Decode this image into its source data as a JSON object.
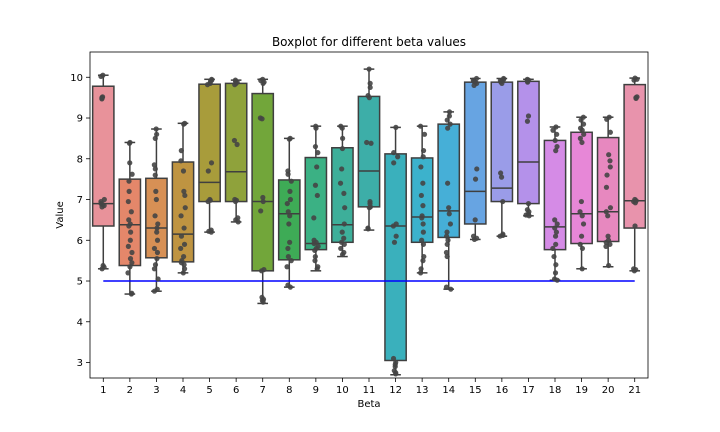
{
  "chart_data": {
    "type": "box",
    "title": "Boxplot for different beta values",
    "xlabel": "Beta",
    "ylabel": "Value",
    "categories": [
      "1",
      "2",
      "3",
      "4",
      "5",
      "6",
      "7",
      "8",
      "9",
      "10",
      "11",
      "12",
      "13",
      "14",
      "15",
      "16",
      "17",
      "18",
      "19",
      "20",
      "21"
    ],
    "ylim": [
      2.62,
      10.62
    ],
    "yticks": [
      3,
      4,
      5,
      6,
      7,
      8,
      9,
      10
    ],
    "grid": false,
    "reference_line": {
      "value": 5.0,
      "color": "#0000ff"
    },
    "colors": [
      "#e8929a",
      "#e4876a",
      "#d79055",
      "#bf9441",
      "#a89c3b",
      "#8fa23b",
      "#72a63a",
      "#3eab56",
      "#3bb184",
      "#3daf9a",
      "#3daea8",
      "#3ab0bc",
      "#3cb2cc",
      "#46afd7",
      "#67a4e2",
      "#9a9ce8",
      "#b491ea",
      "#d58be6",
      "#e787d7",
      "#e788bf",
      "#e893ac"
    ],
    "boxes": [
      {
        "min": 5.3,
        "q1": 6.35,
        "median": 6.9,
        "q3": 9.78,
        "max": 10.05,
        "points": [
          10.05,
          10.02,
          9.52,
          9.5,
          9.49,
          9.47,
          7.0,
          6.95,
          6.9,
          6.88,
          6.85,
          6.82,
          5.38,
          5.34,
          5.3
        ]
      },
      {
        "min": 4.68,
        "q1": 5.38,
        "median": 6.38,
        "q3": 7.5,
        "max": 8.4,
        "points": [
          8.4,
          8.38,
          7.9,
          7.62,
          7.45,
          7.2,
          6.95,
          6.7,
          6.5,
          6.4,
          6.35,
          6.2,
          6.0,
          5.85,
          5.7,
          5.55,
          5.45,
          5.35,
          5.2,
          4.7,
          4.68
        ]
      },
      {
        "min": 4.75,
        "q1": 5.57,
        "median": 6.3,
        "q3": 7.52,
        "max": 8.73,
        "points": [
          8.73,
          8.6,
          8.5,
          7.85,
          7.75,
          7.6,
          7.2,
          7.0,
          6.6,
          6.4,
          6.3,
          6.2,
          6.0,
          5.8,
          5.7,
          5.55,
          5.4,
          5.3,
          5.05,
          4.8,
          4.75
        ]
      },
      {
        "min": 5.2,
        "q1": 5.47,
        "median": 6.15,
        "q3": 7.92,
        "max": 8.87,
        "points": [
          8.87,
          8.85,
          8.2,
          7.95,
          7.7,
          7.2,
          7.1,
          6.8,
          6.6,
          6.3,
          6.1,
          5.9,
          5.8,
          5.6,
          5.5,
          5.45,
          5.4,
          5.3,
          5.2
        ]
      },
      {
        "min": 6.2,
        "q1": 6.95,
        "median": 7.42,
        "q3": 9.83,
        "max": 9.95,
        "points": [
          9.95,
          9.93,
          9.9,
          9.85,
          9.82,
          7.9,
          7.7,
          7.0,
          6.98,
          6.95,
          6.25,
          6.22,
          6.2
        ]
      },
      {
        "min": 6.45,
        "q1": 6.95,
        "median": 7.68,
        "q3": 9.85,
        "max": 9.93,
        "points": [
          9.93,
          9.9,
          9.88,
          9.85,
          9.82,
          8.45,
          8.35,
          7.0,
          6.98,
          6.95,
          6.55,
          6.5,
          6.45
        ]
      },
      {
        "min": 4.45,
        "q1": 5.25,
        "median": 6.95,
        "q3": 9.6,
        "max": 9.95,
        "points": [
          9.95,
          9.92,
          9.88,
          9.85,
          9.0,
          8.98,
          7.05,
          6.95,
          6.72,
          5.28,
          5.25,
          4.6,
          4.55,
          4.52,
          4.48
        ]
      },
      {
        "min": 4.85,
        "q1": 5.52,
        "median": 6.65,
        "q3": 7.48,
        "max": 8.5,
        "points": [
          8.5,
          8.48,
          7.7,
          7.62,
          7.45,
          7.2,
          7.0,
          6.9,
          6.7,
          6.6,
          6.4,
          5.95,
          5.8,
          5.6,
          5.5,
          5.35,
          4.9,
          4.85
        ]
      },
      {
        "min": 5.25,
        "q1": 5.77,
        "median": 5.92,
        "q3": 8.03,
        "max": 8.8,
        "points": [
          8.8,
          8.75,
          8.3,
          8.15,
          7.8,
          7.35,
          7.1,
          6.55,
          6.0,
          5.95,
          5.92,
          5.85,
          5.8,
          5.75,
          5.6,
          5.5,
          5.35,
          5.3
        ]
      },
      {
        "min": 5.6,
        "q1": 5.95,
        "median": 6.38,
        "q3": 8.27,
        "max": 8.8,
        "points": [
          8.8,
          8.75,
          8.5,
          8.25,
          7.75,
          7.4,
          7.15,
          6.8,
          6.4,
          6.2,
          6.05,
          5.95,
          5.9,
          5.8,
          5.7,
          5.65
        ]
      },
      {
        "min": 6.25,
        "q1": 6.82,
        "median": 7.7,
        "q3": 9.53,
        "max": 10.2,
        "points": [
          10.2,
          9.85,
          9.75,
          9.55,
          9.5,
          8.4,
          8.38,
          6.95,
          6.9,
          6.82,
          6.8,
          6.3,
          6.28
        ]
      },
      {
        "min": 2.7,
        "q1": 3.05,
        "median": 6.35,
        "q3": 8.12,
        "max": 8.77,
        "points": [
          8.77,
          8.15,
          8.05,
          7.9,
          6.4,
          6.35,
          6.1,
          5.95,
          3.1,
          3.0,
          2.95,
          2.9,
          2.8,
          2.75,
          2.72
        ]
      },
      {
        "min": 5.2,
        "q1": 5.95,
        "median": 6.57,
        "q3": 8.02,
        "max": 8.8,
        "points": [
          8.8,
          8.6,
          8.2,
          8.05,
          7.8,
          7.4,
          7.1,
          6.85,
          6.6,
          6.55,
          6.4,
          6.2,
          6.0,
          5.9,
          5.6,
          5.5,
          5.3,
          5.2
        ]
      },
      {
        "min": 4.8,
        "q1": 6.07,
        "median": 6.72,
        "q3": 8.85,
        "max": 9.15,
        "points": [
          9.15,
          9.05,
          8.95,
          8.85,
          8.75,
          7.4,
          6.8,
          6.65,
          6.4,
          6.2,
          6.1,
          6.0,
          5.9,
          5.7,
          5.6,
          4.85,
          4.8
        ]
      },
      {
        "min": 6.02,
        "q1": 6.4,
        "median": 7.2,
        "q3": 9.88,
        "max": 9.97,
        "points": [
          9.97,
          9.93,
          9.9,
          9.88,
          9.85,
          9.8,
          7.75,
          7.5,
          6.5,
          6.1,
          6.05,
          6.02
        ]
      },
      {
        "min": 6.1,
        "q1": 6.95,
        "median": 7.28,
        "q3": 9.88,
        "max": 9.97,
        "points": [
          9.97,
          9.95,
          9.92,
          9.9,
          9.88,
          9.85,
          7.65,
          7.55,
          6.95,
          6.15,
          6.12,
          6.1
        ]
      },
      {
        "min": 6.6,
        "q1": 6.9,
        "median": 7.92,
        "q3": 9.9,
        "max": 9.95,
        "points": [
          9.95,
          9.93,
          9.92,
          9.9,
          9.88,
          9.05,
          8.92,
          6.9,
          6.75,
          6.7,
          6.65,
          6.62,
          6.6
        ]
      },
      {
        "min": 5.02,
        "q1": 5.77,
        "median": 6.33,
        "q3": 8.45,
        "max": 8.78,
        "points": [
          8.78,
          8.7,
          8.6,
          8.45,
          8.3,
          8.2,
          6.5,
          6.4,
          6.3,
          6.2,
          6.1,
          5.9,
          5.8,
          5.6,
          5.4,
          5.2,
          5.05,
          5.02
        ]
      },
      {
        "min": 5.3,
        "q1": 5.92,
        "median": 6.65,
        "q3": 8.65,
        "max": 9.02,
        "points": [
          9.02,
          8.95,
          8.85,
          8.75,
          8.7,
          8.6,
          8.5,
          8.4,
          6.95,
          6.7,
          6.6,
          6.4,
          6.1,
          5.9,
          5.8,
          5.3
        ]
      },
      {
        "min": 5.35,
        "q1": 5.97,
        "median": 6.7,
        "q3": 8.52,
        "max": 9.02,
        "points": [
          9.02,
          8.97,
          8.65,
          8.1,
          7.95,
          7.8,
          7.6,
          7.3,
          6.8,
          6.7,
          6.6,
          6.1,
          6.0,
          5.95,
          5.9,
          5.85,
          5.38
        ]
      },
      {
        "min": 5.25,
        "q1": 6.3,
        "median": 6.97,
        "q3": 9.82,
        "max": 9.98,
        "points": [
          9.98,
          9.95,
          9.93,
          9.52,
          9.5,
          9.48,
          7.0,
          6.97,
          6.95,
          6.92,
          6.35,
          5.3,
          5.28,
          5.25
        ]
      }
    ]
  }
}
